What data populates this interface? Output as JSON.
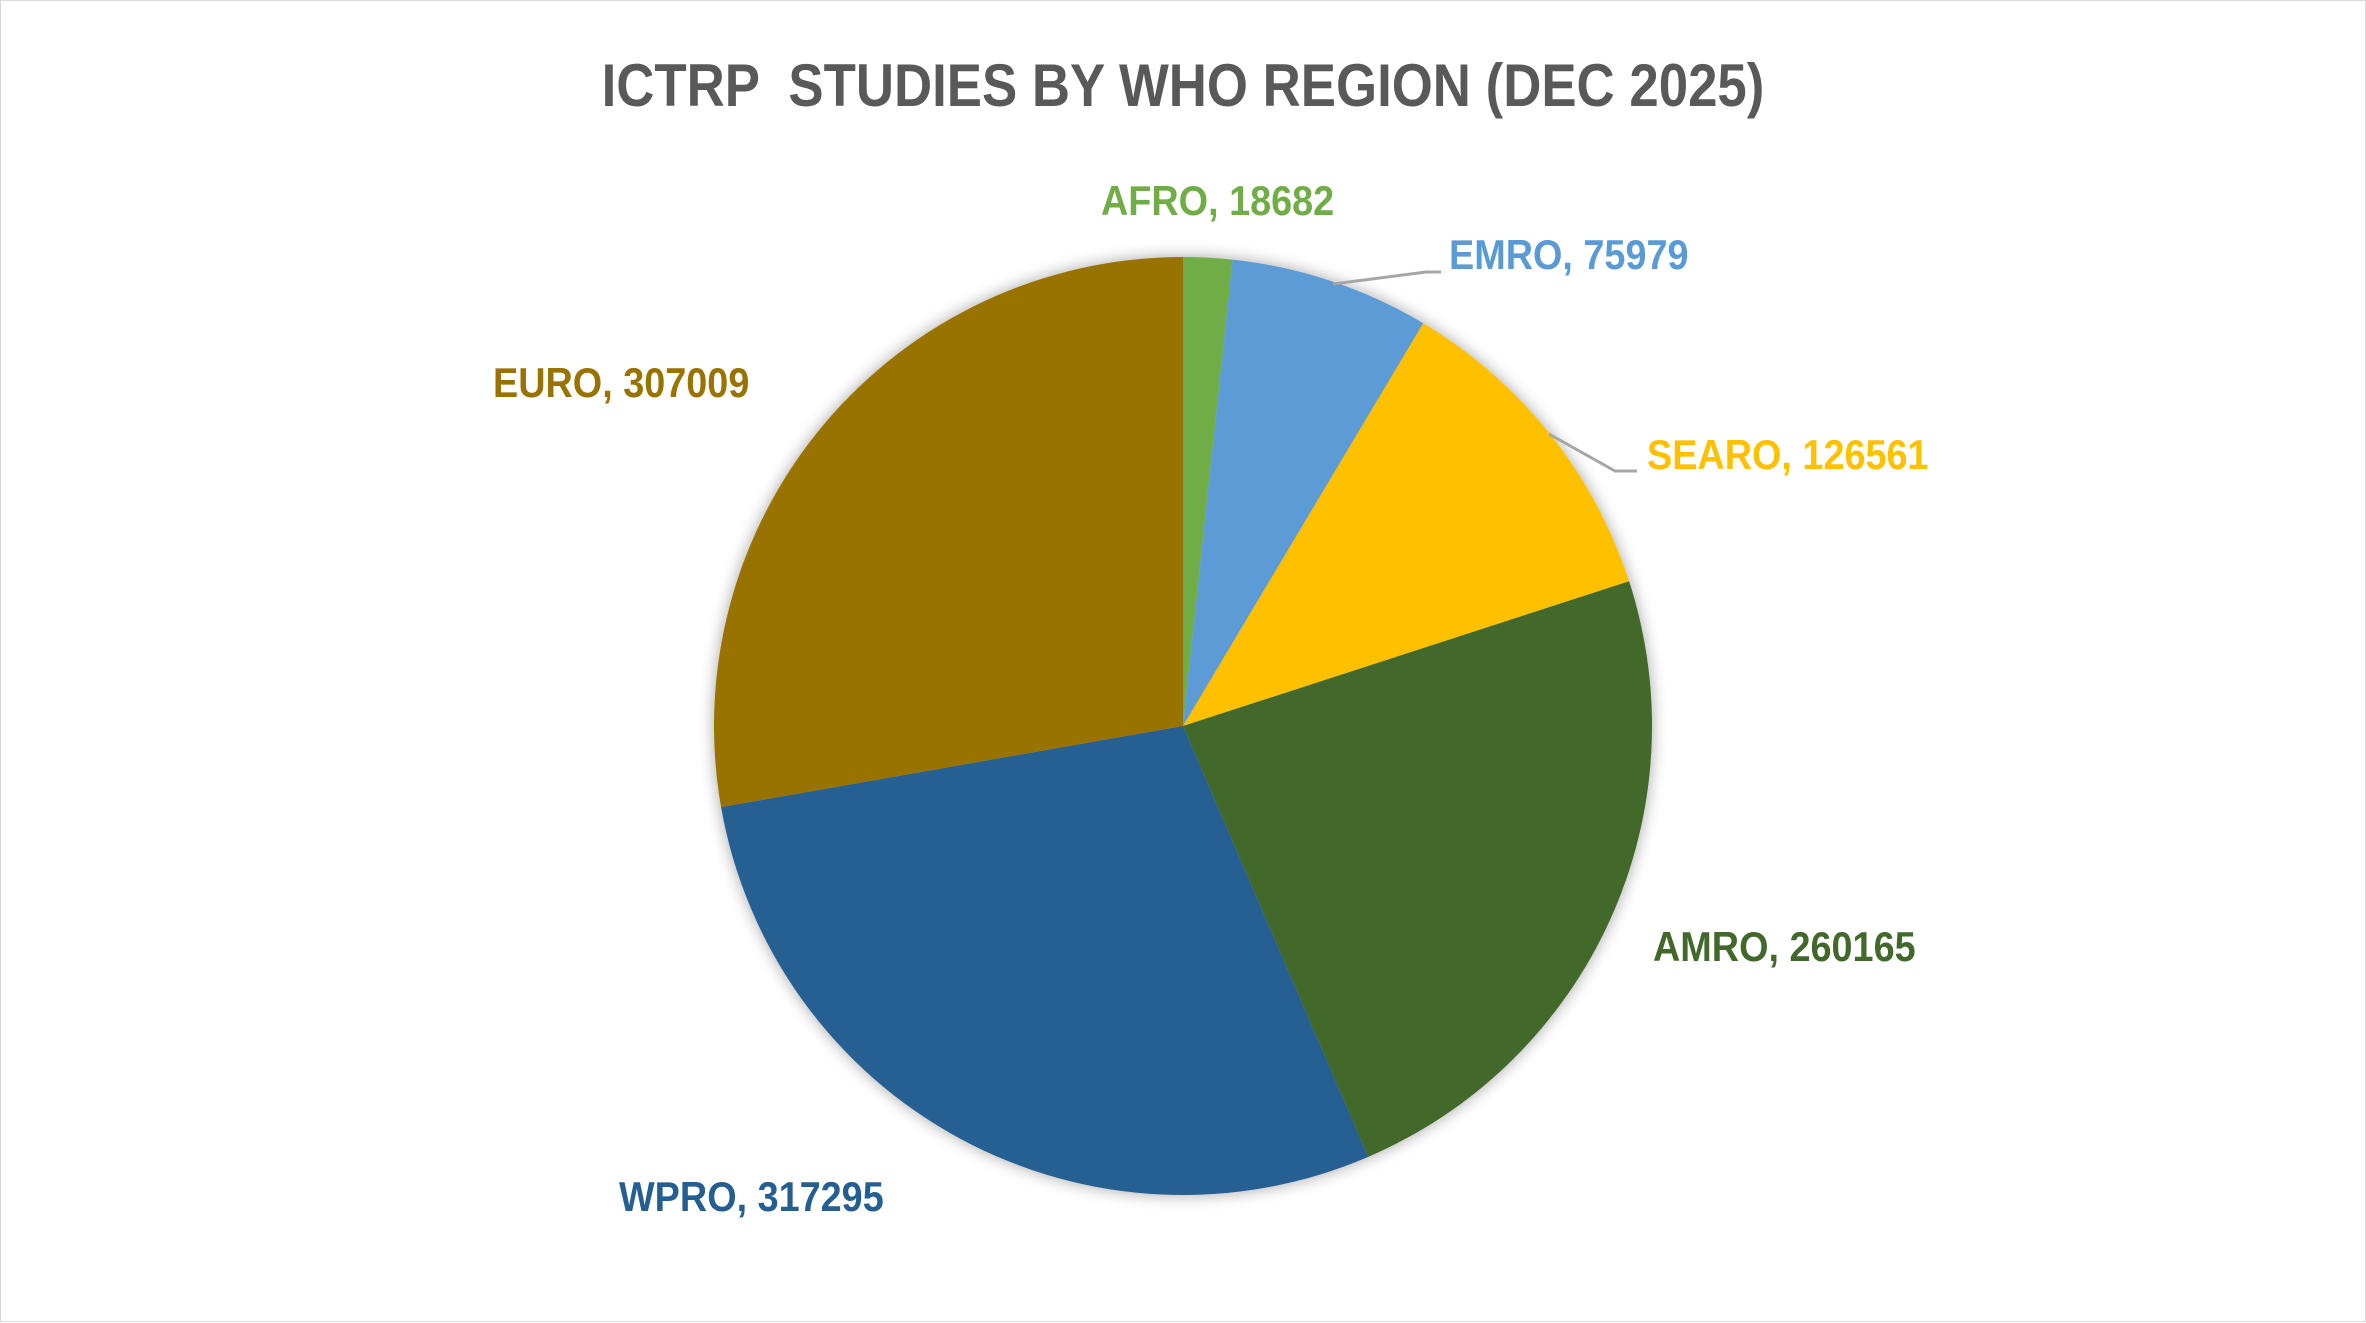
{
  "chart_data": {
    "type": "pie",
    "title": "ICTRP  STUDIES BY WHO REGION (DEC 2025)",
    "categories": [
      "AFRO",
      "EMRO",
      "SEARO",
      "AMRO",
      "WPRO",
      "EURO"
    ],
    "values": [
      18682,
      75979,
      126561,
      260165,
      317295,
      307009
    ],
    "colors": [
      "#70AD47",
      "#5B9BD5",
      "#FFC000",
      "#43682B",
      "#255E91",
      "#997300"
    ],
    "labels": [
      {
        "text": "AFRO, 18682",
        "color": "#70AD47"
      },
      {
        "text": "EMRO, 75979",
        "color": "#5B9BD5"
      },
      {
        "text": "SEARO, 126561",
        "color": "#FFC000"
      },
      {
        "text": "AMRO, 260165",
        "color": "#43682B"
      },
      {
        "text": "WPRO, 317295",
        "color": "#255E91"
      },
      {
        "text": "EURO, 307009",
        "color": "#997300"
      }
    ],
    "start_angle": "12 o'clock, clockwise",
    "legend": "none (data labels shown as category, value)"
  }
}
